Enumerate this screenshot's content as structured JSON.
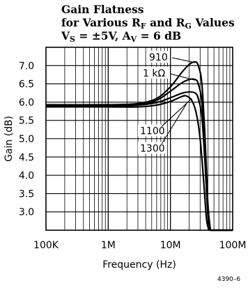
{
  "chart_data": {
    "type": "line",
    "title": {
      "line1": "Gain Flatness",
      "line2_pre": "for Various R",
      "line2_sub1": "F",
      "line2_mid": " and R",
      "line2_sub2": "G",
      "line2_post": " Values",
      "line3_pre": "V",
      "line3_sub1": "S",
      "line3_mid": " =  ±5V, A",
      "line3_sub2": "V",
      "line3_post": " = 6 dB"
    },
    "xlabel": "Frequency (Hz)",
    "ylabel": "Gain (dB)",
    "xscale": "log",
    "xlim": [
      100000,
      100000000
    ],
    "ylim": [
      2.5,
      7.5
    ],
    "grid": true,
    "x_ticks": [
      {
        "value": 100000,
        "label": "100K"
      },
      {
        "value": 1000000,
        "label": "1M"
      },
      {
        "value": 10000000,
        "label": "10M"
      },
      {
        "value": 100000000,
        "label": "100M"
      }
    ],
    "y_ticks": [
      {
        "value": 3.0,
        "label": "3.0"
      },
      {
        "value": 3.5,
        "label": "3.5"
      },
      {
        "value": 4.0,
        "label": "4.0"
      },
      {
        "value": 4.5,
        "label": "4.5"
      },
      {
        "value": 5.0,
        "label": "5.0"
      },
      {
        "value": 5.5,
        "label": "5.5"
      },
      {
        "value": 6.0,
        "label": "6.0"
      },
      {
        "value": 6.5,
        "label": "6.5"
      },
      {
        "value": 7.0,
        "label": "7.0"
      }
    ],
    "series": [
      {
        "name": "910",
        "x": [
          100000,
          1000000,
          3000000,
          6000000,
          10000000,
          15000000,
          20000000,
          25000000,
          28000000,
          32000000,
          36000000,
          40000000,
          44000000
        ],
        "y": [
          5.93,
          5.93,
          5.96,
          6.1,
          6.42,
          6.8,
          7.03,
          7.1,
          7.0,
          6.5,
          5.0,
          3.2,
          2.5
        ]
      },
      {
        "name": "1 kΩ",
        "x": [
          100000,
          1000000,
          3000000,
          6000000,
          10000000,
          15000000,
          20000000,
          25000000,
          28000000,
          32000000,
          36000000,
          40000000,
          44000000
        ],
        "y": [
          5.91,
          5.91,
          5.94,
          6.05,
          6.3,
          6.52,
          6.62,
          6.62,
          6.5,
          6.0,
          4.6,
          3.0,
          2.5
        ]
      },
      {
        "name": "1100",
        "x": [
          100000,
          1000000,
          3000000,
          6000000,
          10000000,
          15000000,
          20000000,
          25000000,
          28000000,
          32000000,
          36000000,
          40000000,
          44000000
        ],
        "y": [
          5.89,
          5.89,
          5.92,
          5.99,
          6.12,
          6.24,
          6.28,
          6.25,
          6.1,
          5.6,
          4.3,
          2.9,
          2.5
        ]
      },
      {
        "name": "1300",
        "x": [
          100000,
          1000000,
          3000000,
          6000000,
          10000000,
          15000000,
          18000000,
          22000000,
          26000000,
          30000000,
          34000000,
          38000000,
          42000000
        ],
        "y": [
          5.87,
          5.87,
          5.87,
          5.92,
          6.02,
          6.15,
          6.17,
          6.05,
          5.7,
          5.0,
          3.9,
          2.8,
          2.5
        ]
      }
    ],
    "annotations": [
      "910",
      "1 kΩ",
      "1100",
      "1300"
    ]
  },
  "doc_id": "4390–6"
}
